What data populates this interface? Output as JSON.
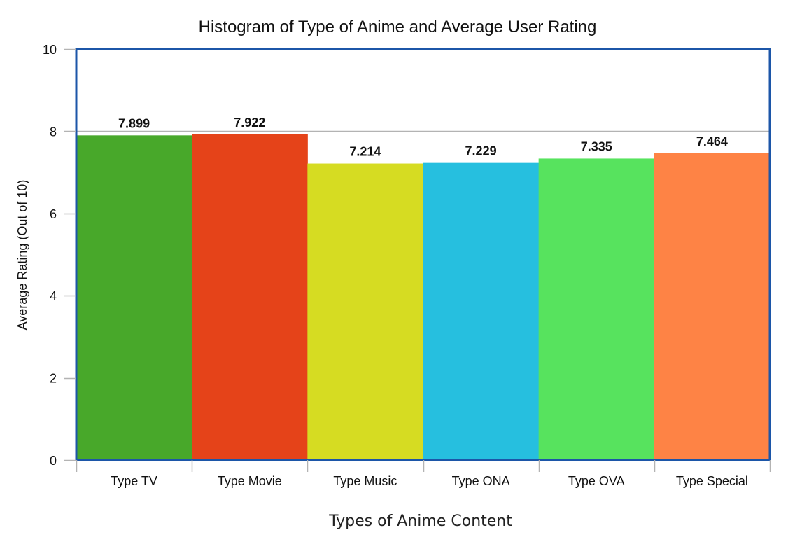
{
  "chart_data": {
    "type": "bar",
    "title": "Histogram of Type of Anime and Average User Rating",
    "xlabel": "Types of Anime Content",
    "ylabel": "Average Rating (Out of 10)",
    "categories": [
      "Type TV",
      "Type Movie",
      "Type Music",
      "Type ONA",
      "Type OVA",
      "Type Special"
    ],
    "values": [
      7.899,
      7.922,
      7.214,
      7.229,
      7.335,
      7.464
    ],
    "value_labels": [
      "7.899",
      "7.922",
      "7.214",
      "7.229",
      "7.335",
      "7.464"
    ],
    "colors": [
      "#48a82a",
      "#e54319",
      "#d6dc22",
      "#26bfdf",
      "#57e35e",
      "#fe8345"
    ],
    "ylim": [
      0,
      10
    ],
    "yticks": [
      0,
      2,
      4,
      6,
      8,
      10
    ],
    "ytick_labels": [
      "0",
      "2",
      "4",
      "6",
      "8",
      "10"
    ],
    "grid": "horizontal",
    "frame_color": "#1c56a8",
    "legend": "none"
  }
}
